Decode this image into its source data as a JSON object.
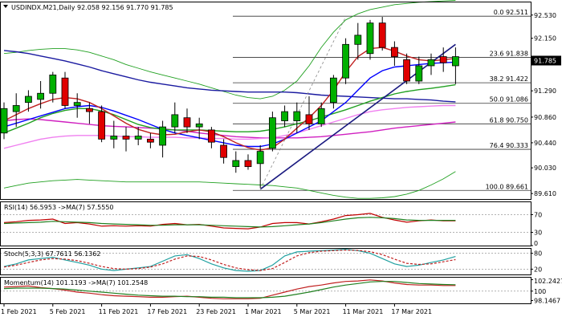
{
  "chart_data": [
    {
      "type": "candlestick",
      "panel": "price",
      "symbol": "USDINDX.M21,Daily",
      "ohlc_header": "92.058 92.156 91.770 91.785",
      "last_price": "91.785",
      "y_ticks": [
        "92.530",
        "92.150",
        "91.785",
        "91.290",
        "90.860",
        "90.440",
        "90.030",
        "89.610"
      ],
      "y_tick_values": [
        92.53,
        92.15,
        91.785,
        91.29,
        90.86,
        90.44,
        90.03,
        89.61
      ],
      "ylim": [
        89.52,
        92.75
      ],
      "x_ticks": [
        {
          "label": "1 Feb 2021",
          "index": 0
        },
        {
          "label": "5 Feb 2021",
          "index": 4
        },
        {
          "label": "11 Feb 2021",
          "index": 8
        },
        {
          "label": "17 Feb 2021",
          "index": 12
        },
        {
          "label": "23 Feb 2021",
          "index": 16
        },
        {
          "label": "1 Mar 2021",
          "index": 20
        },
        {
          "label": "5 Mar 2021",
          "index": 24
        },
        {
          "label": "11 Mar 2021",
          "index": 28
        },
        {
          "label": "17 Mar 2021",
          "index": 32
        }
      ],
      "fib_levels": [
        {
          "label": "0.0 92.511",
          "value": 92.511
        },
        {
          "label": "23.6 91.838",
          "value": 91.838
        },
        {
          "label": "38.2 91.422",
          "value": 91.422
        },
        {
          "label": "50.0 91.086",
          "value": 91.086
        },
        {
          "label": "61.8 90.750",
          "value": 90.75
        },
        {
          "label": "76.4 90.333",
          "value": 90.333
        },
        {
          "label": "100.0 89.661",
          "value": 89.661
        }
      ],
      "candles": [
        {
          "o": 90.6,
          "h": 91.1,
          "l": 90.5,
          "c": 91.0
        },
        {
          "o": 90.95,
          "h": 91.25,
          "l": 90.7,
          "c": 91.05
        },
        {
          "o": 91.1,
          "h": 91.3,
          "l": 90.95,
          "c": 91.2
        },
        {
          "o": 91.15,
          "h": 91.45,
          "l": 91.0,
          "c": 91.25
        },
        {
          "o": 91.25,
          "h": 91.6,
          "l": 91.1,
          "c": 91.55
        },
        {
          "o": 91.5,
          "h": 91.6,
          "l": 91.0,
          "c": 91.05
        },
        {
          "o": 91.05,
          "h": 91.25,
          "l": 90.85,
          "c": 91.1
        },
        {
          "o": 91.0,
          "h": 91.1,
          "l": 90.75,
          "c": 90.95
        },
        {
          "o": 90.95,
          "h": 91.05,
          "l": 90.45,
          "c": 90.5
        },
        {
          "o": 90.5,
          "h": 90.8,
          "l": 90.35,
          "c": 90.55
        },
        {
          "o": 90.55,
          "h": 90.7,
          "l": 90.3,
          "c": 90.5
        },
        {
          "o": 90.5,
          "h": 90.7,
          "l": 90.4,
          "c": 90.55
        },
        {
          "o": 90.5,
          "h": 90.6,
          "l": 90.35,
          "c": 90.45
        },
        {
          "o": 90.4,
          "h": 90.8,
          "l": 90.2,
          "c": 90.7
        },
        {
          "o": 90.7,
          "h": 91.1,
          "l": 90.6,
          "c": 90.9
        },
        {
          "o": 90.85,
          "h": 91.0,
          "l": 90.6,
          "c": 90.7
        },
        {
          "o": 90.7,
          "h": 90.85,
          "l": 90.5,
          "c": 90.75
        },
        {
          "o": 90.65,
          "h": 90.7,
          "l": 90.35,
          "c": 90.45
        },
        {
          "o": 90.4,
          "h": 90.5,
          "l": 90.1,
          "c": 90.2
        },
        {
          "o": 90.05,
          "h": 90.3,
          "l": 89.95,
          "c": 90.15
        },
        {
          "o": 90.15,
          "h": 90.25,
          "l": 90.0,
          "c": 90.05
        },
        {
          "o": 90.1,
          "h": 90.4,
          "l": 89.7,
          "c": 90.3
        },
        {
          "o": 90.35,
          "h": 90.95,
          "l": 90.3,
          "c": 90.85
        },
        {
          "o": 90.8,
          "h": 91.05,
          "l": 90.7,
          "c": 90.95
        },
        {
          "o": 90.8,
          "h": 91.1,
          "l": 90.6,
          "c": 90.95
        },
        {
          "o": 90.9,
          "h": 91.2,
          "l": 90.65,
          "c": 90.75
        },
        {
          "o": 90.75,
          "h": 91.1,
          "l": 90.7,
          "c": 91.0
        },
        {
          "o": 91.1,
          "h": 91.55,
          "l": 91.0,
          "c": 91.5
        },
        {
          "o": 91.5,
          "h": 92.15,
          "l": 91.4,
          "c": 92.05
        },
        {
          "o": 92.05,
          "h": 92.4,
          "l": 91.8,
          "c": 92.2
        },
        {
          "o": 91.9,
          "h": 92.45,
          "l": 91.8,
          "c": 92.4
        },
        {
          "o": 92.4,
          "h": 92.5,
          "l": 91.95,
          "c": 92.0
        },
        {
          "o": 92.0,
          "h": 92.1,
          "l": 91.7,
          "c": 91.85
        },
        {
          "o": 91.8,
          "h": 91.9,
          "l": 91.4,
          "c": 91.45
        },
        {
          "o": 91.45,
          "h": 91.85,
          "l": 91.4,
          "c": 91.7
        },
        {
          "o": 91.7,
          "h": 91.9,
          "l": 91.55,
          "c": 91.8
        },
        {
          "o": 91.85,
          "h": 92.0,
          "l": 91.6,
          "c": 91.75
        },
        {
          "o": 91.7,
          "h": 92.0,
          "l": 91.4,
          "c": 91.85
        }
      ],
      "ma_series": [
        {
          "color": "#1a1aa0",
          "values": [
            91.95,
            91.93,
            91.9,
            91.86,
            91.82,
            91.78,
            91.73,
            91.68,
            91.62,
            91.57,
            91.52,
            91.47,
            91.43,
            91.4,
            91.37,
            91.34,
            91.32,
            91.3,
            91.29,
            91.28,
            91.27,
            91.27,
            91.27,
            91.27,
            91.26,
            91.24,
            91.22,
            91.21,
            91.2,
            91.19,
            91.18,
            91.17,
            91.16,
            91.16,
            91.15,
            91.14,
            91.12,
            91.11
          ]
        },
        {
          "color": "#d020c0",
          "values": [
            90.8,
            90.82,
            90.83,
            90.82,
            90.8,
            90.78,
            90.76,
            90.74,
            90.72,
            90.71,
            90.7,
            90.69,
            90.68,
            90.67,
            90.65,
            90.63,
            90.6,
            90.58,
            90.56,
            90.54,
            90.53,
            90.52,
            90.52,
            90.52,
            90.52,
            90.53,
            90.54,
            90.56,
            90.58,
            90.6,
            90.62,
            90.65,
            90.68,
            90.7,
            90.72,
            90.74,
            90.76,
            90.78
          ]
        },
        {
          "color": "#f080f0",
          "values": [
            90.35,
            90.4,
            90.45,
            90.5,
            90.53,
            90.55,
            90.56,
            90.56,
            90.56,
            90.55,
            90.54,
            90.54,
            90.53,
            90.53,
            90.53,
            90.52,
            90.52,
            90.51,
            90.51,
            90.5,
            90.5,
            90.51,
            90.52,
            90.56,
            90.6,
            90.66,
            90.72,
            90.78,
            90.84,
            90.9,
            90.95,
            90.98,
            91.0,
            91.02,
            91.03,
            91.04,
            91.05,
            91.05
          ]
        },
        {
          "color": "#20a020",
          "values": [
            90.6,
            90.68,
            90.76,
            90.85,
            90.92,
            90.97,
            91.0,
            91.0,
            90.96,
            90.9,
            90.82,
            90.74,
            90.69,
            90.66,
            90.65,
            90.65,
            90.65,
            90.64,
            90.63,
            90.62,
            90.62,
            90.63,
            90.66,
            90.7,
            90.75,
            90.8,
            90.86,
            90.92,
            90.98,
            91.05,
            91.12,
            91.18,
            91.24,
            91.28,
            91.31,
            91.33,
            91.36,
            91.39
          ]
        },
        {
          "color": "#0000ff",
          "values": [
            90.7,
            90.76,
            90.82,
            90.88,
            90.94,
            91.0,
            91.03,
            91.05,
            91.02,
            90.96,
            90.89,
            90.82,
            90.74,
            90.66,
            90.6,
            90.56,
            90.52,
            90.48,
            90.44,
            90.4,
            90.38,
            90.38,
            90.42,
            90.5,
            90.6,
            90.7,
            90.8,
            90.95,
            91.1,
            91.3,
            91.5,
            91.62,
            91.68,
            91.7,
            91.72,
            91.74,
            91.75,
            91.76
          ]
        },
        {
          "color": "#c02020",
          "values": [
            90.8,
            90.9,
            91.0,
            91.08,
            91.15,
            91.18,
            91.16,
            91.1,
            91.0,
            90.88,
            90.76,
            90.66,
            90.6,
            90.57,
            90.58,
            90.62,
            90.65,
            90.62,
            90.54,
            90.44,
            90.36,
            90.32,
            90.36,
            90.5,
            90.68,
            90.85,
            91.05,
            91.3,
            91.6,
            91.85,
            91.98,
            92.0,
            91.94,
            91.86,
            91.8,
            91.78,
            91.8,
            91.82
          ]
        }
      ],
      "bollinger": {
        "color": "#20a020",
        "upper": [
          91.9,
          91.92,
          91.95,
          91.97,
          91.98,
          91.98,
          91.96,
          91.92,
          91.86,
          91.8,
          91.72,
          91.66,
          91.6,
          91.55,
          91.5,
          91.45,
          91.4,
          91.34,
          91.28,
          91.22,
          91.18,
          91.16,
          91.2,
          91.3,
          91.45,
          91.7,
          92.0,
          92.25,
          92.45,
          92.55,
          92.62,
          92.66,
          92.7,
          92.72,
          92.74,
          92.75,
          92.76,
          92.77
        ],
        "lower": [
          89.7,
          89.74,
          89.78,
          89.8,
          89.82,
          89.83,
          89.84,
          89.83,
          89.82,
          89.81,
          89.8,
          89.8,
          89.8,
          89.8,
          89.8,
          89.8,
          89.8,
          89.79,
          89.78,
          89.77,
          89.76,
          89.75,
          89.74,
          89.72,
          89.7,
          89.66,
          89.62,
          89.58,
          89.55,
          89.53,
          89.53,
          89.54,
          89.56,
          89.6,
          89.66,
          89.75,
          89.85,
          89.97
        ]
      },
      "trendlines": [
        {
          "color": "#1a1a80",
          "from": [
            21,
            89.68
          ],
          "to": [
            37,
            92.05
          ]
        },
        {
          "color": "#888888",
          "dashed": true,
          "from": [
            21,
            89.68
          ],
          "to": [
            28,
            92.5
          ]
        }
      ]
    },
    {
      "type": "line",
      "panel": "rsi",
      "label": "RSI(14) 56.5953 ->MA(7) 57.5550",
      "y_ticks": [
        "70",
        "30",
        "0"
      ],
      "y_tick_values": [
        70,
        30,
        0
      ],
      "ylim": [
        0,
        100
      ],
      "series": [
        {
          "color": "#c00000",
          "values": [
            52,
            54,
            57,
            58,
            60,
            50,
            52,
            49,
            44,
            45,
            44,
            45,
            44,
            48,
            50,
            47,
            48,
            44,
            40,
            39,
            38,
            42,
            50,
            52,
            52,
            49,
            54,
            60,
            68,
            70,
            73,
            64,
            58,
            53,
            56,
            58,
            56,
            56
          ]
        },
        {
          "color": "#208020",
          "values": [
            50,
            51,
            52,
            53,
            55,
            54,
            53,
            52,
            50,
            49,
            48,
            47,
            46,
            46,
            47,
            47,
            47,
            46,
            45,
            44,
            43,
            42,
            43,
            45,
            47,
            49,
            52,
            56,
            60,
            63,
            64,
            63,
            61,
            58,
            57,
            57,
            57,
            57
          ]
        }
      ]
    },
    {
      "type": "line",
      "panel": "stoch",
      "label": "Stoch(5,3,3) 67.7611 56.1362",
      "y_ticks": [
        "80",
        "20"
      ],
      "y_tick_values": [
        80,
        20
      ],
      "ylim": [
        0,
        100
      ],
      "series": [
        {
          "color": "#20a0a0",
          "values": [
            30,
            40,
            55,
            60,
            65,
            55,
            45,
            35,
            20,
            15,
            20,
            25,
            30,
            50,
            70,
            75,
            60,
            40,
            25,
            15,
            12,
            15,
            35,
            70,
            85,
            88,
            90,
            92,
            95,
            90,
            80,
            60,
            40,
            30,
            35,
            45,
            55,
            68
          ]
        },
        {
          "color": "#c02020",
          "dashed": true,
          "values": [
            28,
            35,
            45,
            55,
            60,
            58,
            52,
            42,
            30,
            22,
            20,
            22,
            28,
            40,
            58,
            70,
            68,
            55,
            38,
            25,
            18,
            15,
            22,
            45,
            70,
            82,
            88,
            90,
            92,
            91,
            86,
            75,
            58,
            42,
            38,
            40,
            48,
            56
          ]
        }
      ]
    },
    {
      "type": "line",
      "panel": "momentum",
      "label": "Momentum(14) 101.1193 ->MA(7) 101.2548",
      "y_ticks": [
        "102.2427",
        "100",
        "98.1467"
      ],
      "y_tick_values": [
        102.2427,
        100,
        98.1467
      ],
      "ylim": [
        97.6,
        102.8
      ],
      "series": [
        {
          "color": "#c02020",
          "values": [
            100.8,
            100.9,
            101.0,
            100.7,
            100.5,
            100.2,
            99.8,
            99.6,
            99.3,
            99.1,
            99.0,
            98.9,
            98.8,
            98.8,
            98.9,
            99.0,
            98.8,
            98.6,
            98.5,
            98.5,
            98.5,
            98.6,
            99.2,
            99.8,
            100.4,
            100.9,
            101.2,
            101.6,
            101.9,
            102.0,
            102.2,
            102.0,
            101.6,
            101.3,
            101.2,
            101.2,
            101.1,
            101.1
          ]
        },
        {
          "color": "#208020",
          "values": [
            100.5,
            100.6,
            100.6,
            100.6,
            100.5,
            100.4,
            100.2,
            100.0,
            99.8,
            99.6,
            99.4,
            99.2,
            99.1,
            99.0,
            99.0,
            98.9,
            98.9,
            98.8,
            98.8,
            98.7,
            98.7,
            98.7,
            98.8,
            99.0,
            99.4,
            99.8,
            100.3,
            100.8,
            101.2,
            101.5,
            101.8,
            101.9,
            101.9,
            101.7,
            101.5,
            101.4,
            101.3,
            101.25
          ]
        }
      ]
    }
  ]
}
